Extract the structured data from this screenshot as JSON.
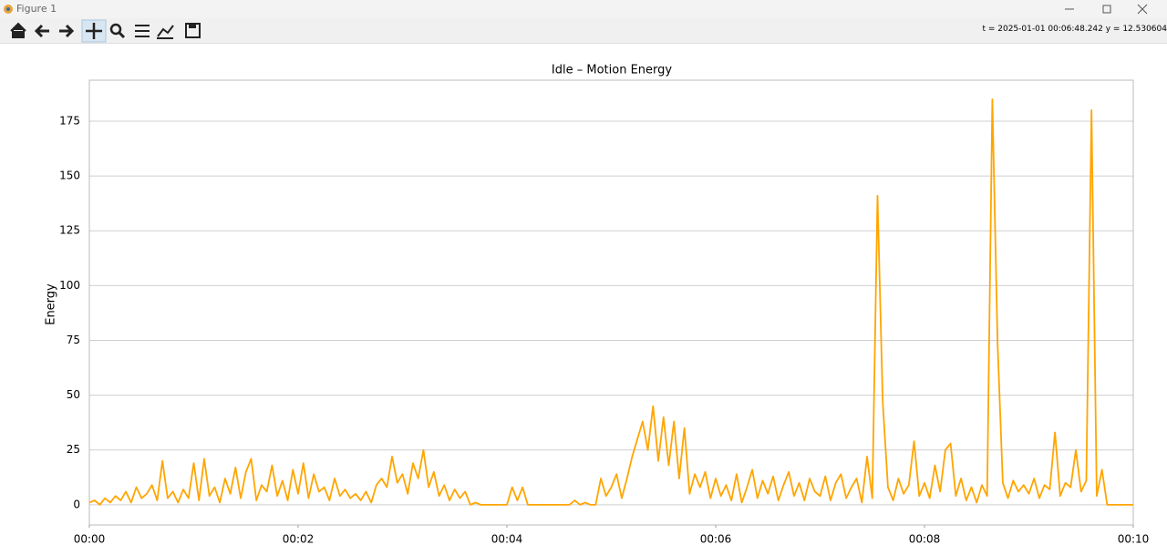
{
  "window": {
    "title": "Figure 1",
    "status": "t = 2025-01-01 00:06:48.242  y = 12.530604"
  },
  "chart_data": {
    "type": "line",
    "title": "Idle – Motion Energy",
    "y_label": "Energy",
    "grid": true,
    "xlim": [
      0,
      10
    ],
    "ylim": [
      -9.2,
      193.7
    ],
    "xticks": [
      {
        "value": 0,
        "label": "00:00"
      },
      {
        "value": 2,
        "label": "00:02"
      },
      {
        "value": 4,
        "label": "00:04"
      },
      {
        "value": 6,
        "label": "00:06"
      },
      {
        "value": 8,
        "label": "00:08"
      },
      {
        "value": 10,
        "label": "00:10"
      }
    ],
    "yticks": [
      0,
      25,
      50,
      75,
      100,
      125,
      150,
      175
    ],
    "series": [
      {
        "color": "#ffa500",
        "x": [
          0,
          0.05,
          0.1,
          0.15,
          0.2,
          0.25,
          0.3,
          0.35,
          0.4,
          0.45,
          0.5,
          0.55,
          0.6,
          0.65,
          0.7,
          0.75,
          0.8,
          0.85,
          0.9,
          0.95,
          1,
          1.05,
          1.1,
          1.15,
          1.2,
          1.25,
          1.3,
          1.35,
          1.4,
          1.45,
          1.5,
          1.55,
          1.6,
          1.65,
          1.7,
          1.75,
          1.8,
          1.85,
          1.9,
          1.95,
          2,
          2.05,
          2.1,
          2.15,
          2.2,
          2.25,
          2.3,
          2.35,
          2.4,
          2.45,
          2.5,
          2.55,
          2.6,
          2.65,
          2.7,
          2.75,
          2.8,
          2.85,
          2.9,
          2.95,
          3,
          3.05,
          3.1,
          3.15,
          3.2,
          3.25,
          3.3,
          3.35,
          3.4,
          3.45,
          3.5,
          3.55,
          3.6,
          3.65,
          3.7,
          3.75,
          3.8,
          3.85,
          3.9,
          3.95,
          4,
          4.05,
          4.1,
          4.15,
          4.2,
          4.25,
          4.3,
          4.35,
          4.4,
          4.45,
          4.5,
          4.55,
          4.6,
          4.65,
          4.7,
          4.75,
          4.8,
          4.85,
          4.9,
          4.95,
          5,
          5.05,
          5.1,
          5.15,
          5.2,
          5.25,
          5.3,
          5.35,
          5.4,
          5.45,
          5.5,
          5.55,
          5.6,
          5.65,
          5.7,
          5.75,
          5.8,
          5.85,
          5.9,
          5.95,
          6,
          6.05,
          6.1,
          6.15,
          6.2,
          6.25,
          6.3,
          6.35,
          6.4,
          6.45,
          6.5,
          6.55,
          6.6,
          6.65,
          6.7,
          6.75,
          6.8,
          6.85,
          6.9,
          6.95,
          7,
          7.05,
          7.1,
          7.15,
          7.2,
          7.25,
          7.3,
          7.35,
          7.4,
          7.45,
          7.5,
          7.55,
          7.6,
          7.65,
          7.7,
          7.75,
          7.8,
          7.85,
          7.9,
          7.95,
          8,
          8.05,
          8.1,
          8.15,
          8.2,
          8.25,
          8.3,
          8.35,
          8.4,
          8.45,
          8.5,
          8.55,
          8.6,
          8.65,
          8.7,
          8.75,
          8.8,
          8.85,
          8.9,
          8.95,
          9,
          9.05,
          9.1,
          9.15,
          9.2,
          9.25,
          9.3,
          9.35,
          9.4,
          9.45,
          9.5,
          9.55,
          9.6,
          9.65,
          9.7,
          9.75,
          9.8,
          9.85,
          9.9,
          9.95,
          10
        ],
        "values": [
          1,
          2,
          0,
          3,
          1,
          4,
          2,
          6,
          1,
          8,
          3,
          5,
          9,
          2,
          20,
          3,
          6,
          1,
          7,
          3,
          19,
          2,
          21,
          4,
          8,
          1,
          12,
          5,
          17,
          3,
          15,
          21,
          2,
          9,
          6,
          18,
          4,
          11,
          2,
          16,
          5,
          19,
          3,
          14,
          6,
          8,
          2,
          12,
          4,
          7,
          3,
          5,
          2,
          6,
          1,
          9,
          12,
          8,
          22,
          10,
          14,
          5,
          19,
          12,
          25,
          8,
          15,
          4,
          9,
          2,
          7,
          3,
          6,
          0,
          1,
          0,
          0,
          0,
          0,
          0,
          0,
          8,
          2,
          8,
          0,
          0,
          0,
          0,
          0,
          0,
          0,
          0,
          0,
          2,
          0,
          1,
          0,
          0,
          12,
          4,
          8,
          14,
          3,
          12,
          22,
          30,
          38,
          25,
          45,
          20,
          40,
          18,
          38,
          12,
          35,
          5,
          14,
          8,
          15,
          3,
          12,
          4,
          9,
          2,
          14,
          1,
          8,
          16,
          3,
          11,
          5,
          13,
          2,
          9,
          15,
          4,
          10,
          2,
          12,
          6,
          4,
          13,
          2,
          10,
          14,
          3,
          8,
          12,
          1,
          22,
          3,
          141,
          47,
          8,
          2,
          12,
          5,
          9,
          29,
          4,
          10,
          3,
          18,
          6,
          25,
          28,
          4,
          12,
          2,
          8,
          1,
          9,
          4,
          185,
          74,
          10,
          3,
          11,
          6,
          9,
          5,
          12,
          3,
          9,
          7,
          33,
          4,
          10,
          8,
          25,
          6,
          11,
          180,
          4,
          16,
          0,
          0,
          0,
          0,
          0,
          0
        ]
      }
    ]
  }
}
